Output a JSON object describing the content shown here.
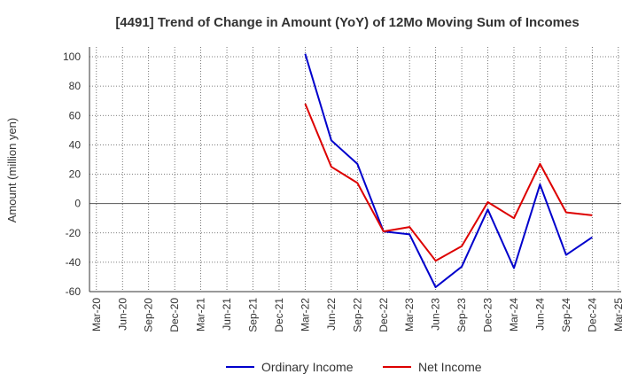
{
  "chart_data": {
    "type": "line",
    "title": "[4491]  Trend of Change in Amount (YoY) of 12Mo Moving Sum of Incomes",
    "ylabel": "Amount (million yen)",
    "xlabel": "",
    "ylim": [
      -60,
      100
    ],
    "yticks": [
      100,
      80,
      60,
      40,
      20,
      0,
      -20,
      -40,
      -60
    ],
    "categories": [
      "Mar-20",
      "Jun-20",
      "Sep-20",
      "Dec-20",
      "Mar-21",
      "Jun-21",
      "Sep-21",
      "Dec-21",
      "Mar-22",
      "Jun-22",
      "Sep-22",
      "Dec-22",
      "Mar-23",
      "Jun-23",
      "Sep-23",
      "Dec-23",
      "Mar-24",
      "Jun-24",
      "Sep-24",
      "Dec-24",
      "Mar-25"
    ],
    "grid": true,
    "legend_position": "bottom",
    "series": [
      {
        "name": "Ordinary Income",
        "color": "#0000cc",
        "values": [
          null,
          null,
          null,
          null,
          null,
          null,
          null,
          null,
          102,
          43,
          27,
          -19,
          -21,
          -57,
          -43,
          -4,
          -44,
          13,
          -35,
          -23,
          null
        ]
      },
      {
        "name": "Net Income",
        "color": "#dd0000",
        "values": [
          null,
          null,
          null,
          null,
          null,
          null,
          null,
          null,
          68,
          25,
          14,
          -19,
          -16,
          -39,
          -29,
          1,
          -10,
          27,
          -6,
          -8,
          null
        ]
      }
    ]
  }
}
